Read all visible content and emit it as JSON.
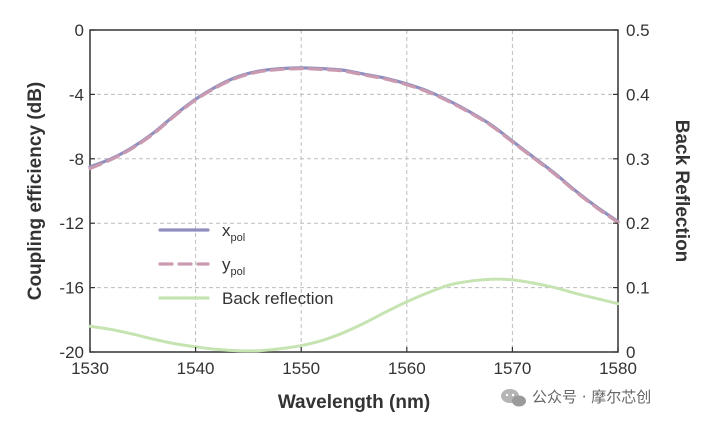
{
  "chart_data": {
    "type": "line",
    "title": "",
    "xlabel": "Wavelength (nm)",
    "ylabel_left": "Coupling efficiency (dB)",
    "ylabel_right": "Back Reflection",
    "xlim": [
      1530,
      1580
    ],
    "ylim_left": [
      -20,
      0
    ],
    "ylim_right": [
      0,
      0.5
    ],
    "x_ticks": [
      "1530",
      "1540",
      "1550",
      "1560",
      "1570",
      "1580"
    ],
    "y_left_ticks": [
      "0",
      "-4",
      "-8",
      "-12",
      "-16",
      "-20"
    ],
    "y_right_ticks": [
      "0.5",
      "0.4",
      "0.3",
      "0.2",
      "0.1",
      "0"
    ],
    "grid": true,
    "legend": "center-left",
    "series": [
      {
        "name": "x",
        "name_sub": "pol",
        "axis": "left",
        "color": "#8f8fbf",
        "dash": "solid",
        "x": [
          1530,
          1532,
          1534,
          1536,
          1538,
          1540,
          1542,
          1544,
          1546,
          1548,
          1550,
          1552,
          1554,
          1556,
          1558,
          1560,
          1562,
          1564,
          1566,
          1568,
          1570,
          1572,
          1574,
          1576,
          1578,
          1580
        ],
        "values": [
          -8.5,
          -8.0,
          -7.3,
          -6.4,
          -5.3,
          -4.3,
          -3.5,
          -2.9,
          -2.55,
          -2.4,
          -2.35,
          -2.4,
          -2.5,
          -2.75,
          -3.0,
          -3.35,
          -3.8,
          -4.4,
          -5.1,
          -5.9,
          -6.9,
          -7.9,
          -8.9,
          -10.0,
          -11.0,
          -11.9
        ]
      },
      {
        "name": "y",
        "name_sub": "pol",
        "axis": "left",
        "color": "#c99ab0",
        "dash": "dashed",
        "x": [
          1530,
          1532,
          1534,
          1536,
          1538,
          1540,
          1542,
          1544,
          1546,
          1548,
          1550,
          1552,
          1554,
          1556,
          1558,
          1560,
          1562,
          1564,
          1566,
          1568,
          1570,
          1572,
          1574,
          1576,
          1578,
          1580
        ],
        "values": [
          -8.6,
          -8.05,
          -7.35,
          -6.45,
          -5.35,
          -4.35,
          -3.55,
          -2.95,
          -2.6,
          -2.45,
          -2.4,
          -2.45,
          -2.55,
          -2.8,
          -3.05,
          -3.4,
          -3.85,
          -4.45,
          -5.15,
          -5.95,
          -6.95,
          -7.95,
          -8.95,
          -10.05,
          -11.05,
          -11.95
        ]
      },
      {
        "name": "Back reflection",
        "name_sub": "",
        "axis": "right",
        "color": "#c6e3b2",
        "dash": "solid",
        "x": [
          1530,
          1532,
          1534,
          1536,
          1538,
          1540,
          1542,
          1544,
          1546,
          1548,
          1550,
          1552,
          1554,
          1556,
          1558,
          1560,
          1562,
          1564,
          1566,
          1568,
          1570,
          1572,
          1574,
          1576,
          1578,
          1580
        ],
        "values": [
          0.04,
          0.035,
          0.028,
          0.02,
          0.013,
          0.008,
          0.004,
          0.002,
          0.002,
          0.005,
          0.01,
          0.018,
          0.03,
          0.045,
          0.062,
          0.078,
          0.092,
          0.104,
          0.11,
          0.113,
          0.112,
          0.107,
          0.1,
          0.091,
          0.083,
          0.075
        ]
      }
    ]
  },
  "watermark": {
    "text": "公众号 · 摩尔芯创",
    "icon": "wechat-icon"
  }
}
